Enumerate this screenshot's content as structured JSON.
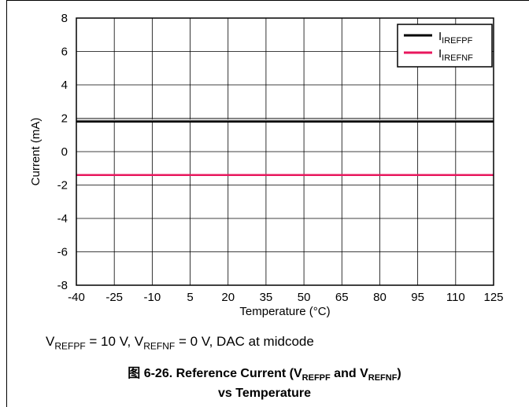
{
  "conditions": {
    "v1": "V",
    "v1_sub": "REFPF",
    "v1_val": " = 10 V, ",
    "v2": "V",
    "v2_sub": "REFNF",
    "v2_val": " = 0 V, DAC at midcode"
  },
  "caption": {
    "prefix": "图 6-26. Reference Current (V",
    "sub1": "REFPF",
    "mid": " and V",
    "sub2": "REFNF",
    "end": ")",
    "line2": "vs Temperature"
  },
  "chart_data": {
    "type": "line",
    "xlabel": "Temperature (°C)",
    "ylabel": "Current (mA)",
    "xlim": [
      -40,
      125
    ],
    "ylim": [
      -8,
      8
    ],
    "x_ticks": [
      -40,
      -25,
      -10,
      5,
      20,
      35,
      50,
      65,
      80,
      95,
      110,
      125
    ],
    "y_ticks": [
      -8,
      -6,
      -4,
      -2,
      0,
      2,
      4,
      6,
      8
    ],
    "grid": true,
    "legend_position": "top-right",
    "series": [
      {
        "name": "IREFPF",
        "label_main": "I",
        "label_sub": "IREFPF",
        "color": "#000000",
        "x": [
          -40,
          125
        ],
        "y": [
          1.8,
          1.8
        ]
      },
      {
        "name": "IREFNF",
        "label_main": "I",
        "label_sub": "IREFNF",
        "color": "#e8175d",
        "x": [
          -40,
          125
        ],
        "y": [
          -1.4,
          -1.4
        ]
      }
    ]
  }
}
